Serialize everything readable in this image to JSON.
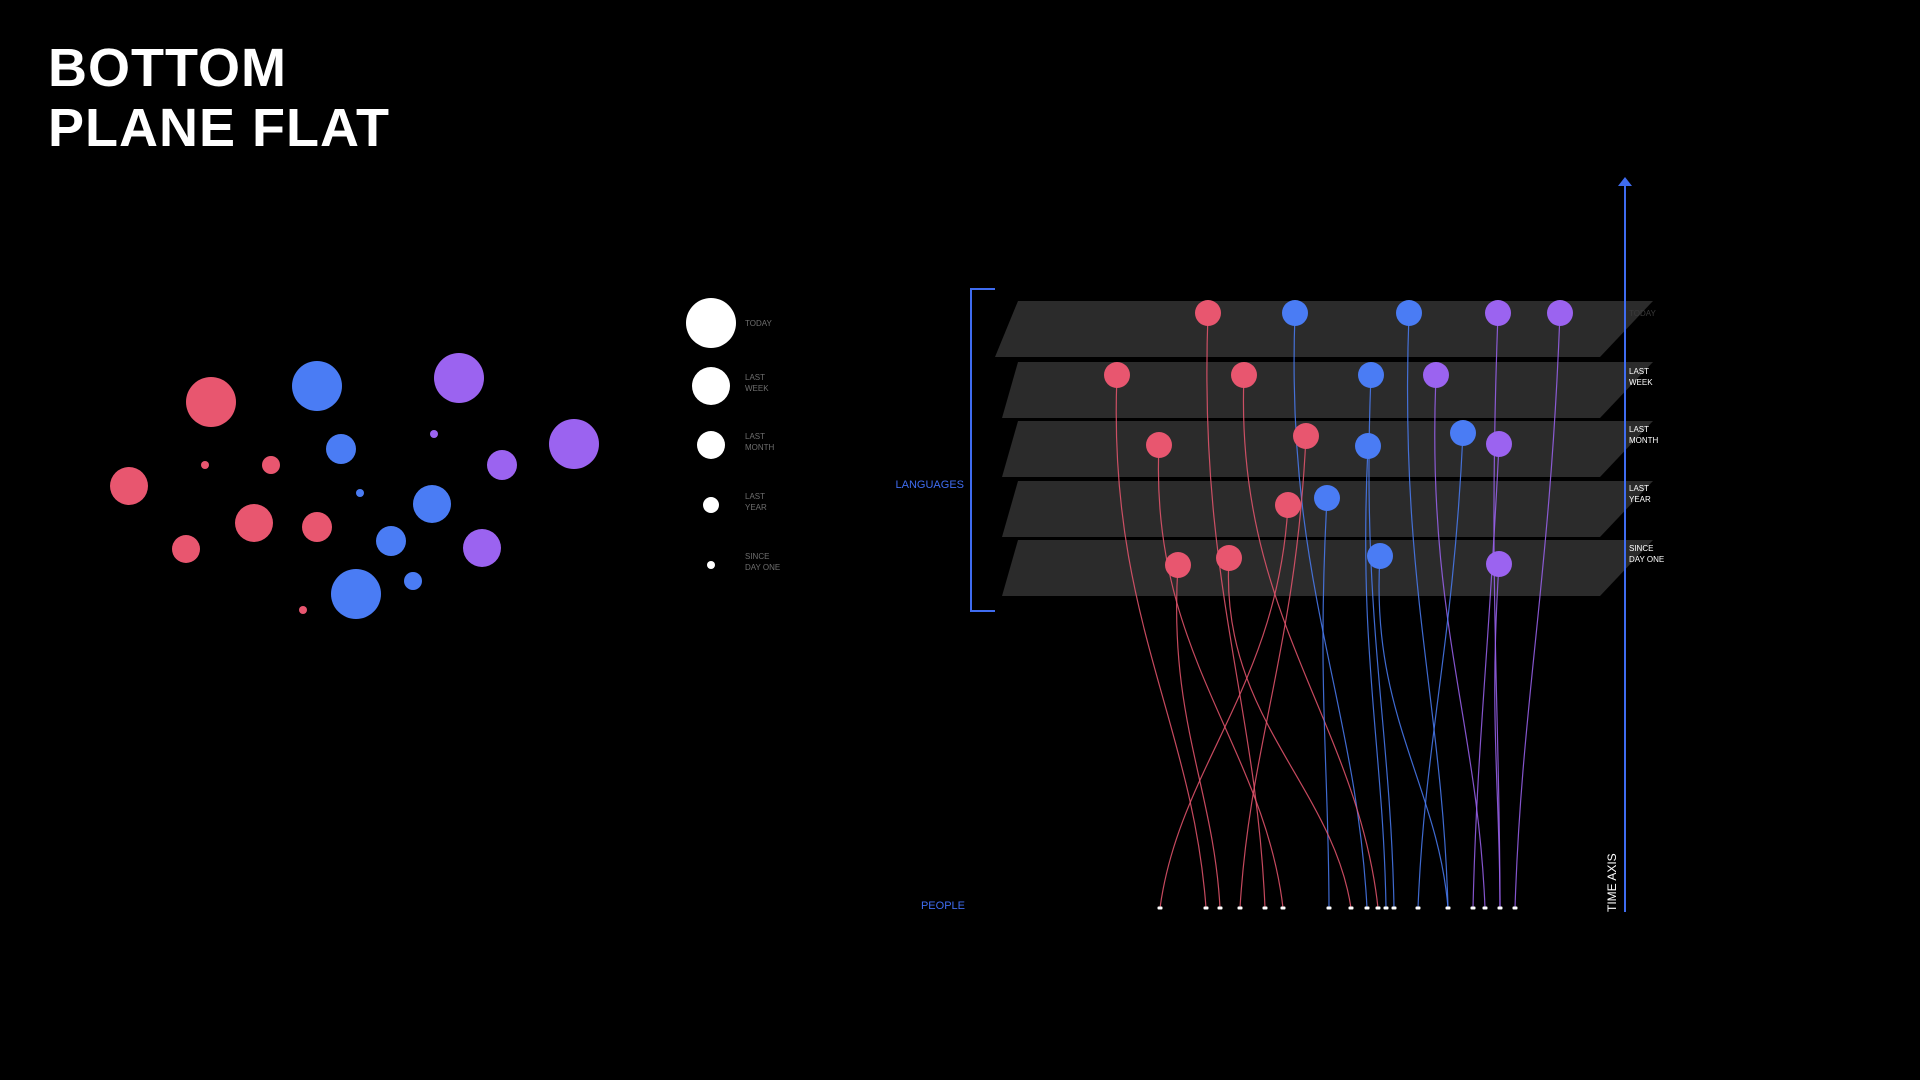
{
  "title": {
    "line1": "BOTTOM",
    "line2": "PLANE FLAT"
  },
  "colors": {
    "red": "#e8566f",
    "blue": "#4a7cf4",
    "purple": "#9b63f0",
    "plane": "#2b2b2b",
    "accent": "#3f6cf0",
    "legend_text": "#6e6e6e"
  },
  "legend": {
    "items": [
      {
        "label_line1": "TODAY",
        "label_line2": ""
      },
      {
        "label_line1": "LAST",
        "label_line2": "WEEK"
      },
      {
        "label_line1": "LAST",
        "label_line2": "MONTH"
      },
      {
        "label_line1": "LAST",
        "label_line2": "YEAR"
      },
      {
        "label_line1": "SINCE",
        "label_line2": "DAY ONE"
      }
    ]
  },
  "diagram": {
    "languages_label": "LANGUAGES",
    "people_label": "PEOPLE",
    "time_axis_label": "TIME AXIS",
    "planes": [
      {
        "label_line1": "TODAY",
        "label_line2": ""
      },
      {
        "label_line1": "LAST",
        "label_line2": "WEEK"
      },
      {
        "label_line1": "LAST",
        "label_line2": "MONTH"
      },
      {
        "label_line1": "LAST",
        "label_line2": "YEAR"
      },
      {
        "label_line1": "SINCE",
        "label_line2": "DAY ONE"
      }
    ]
  }
}
